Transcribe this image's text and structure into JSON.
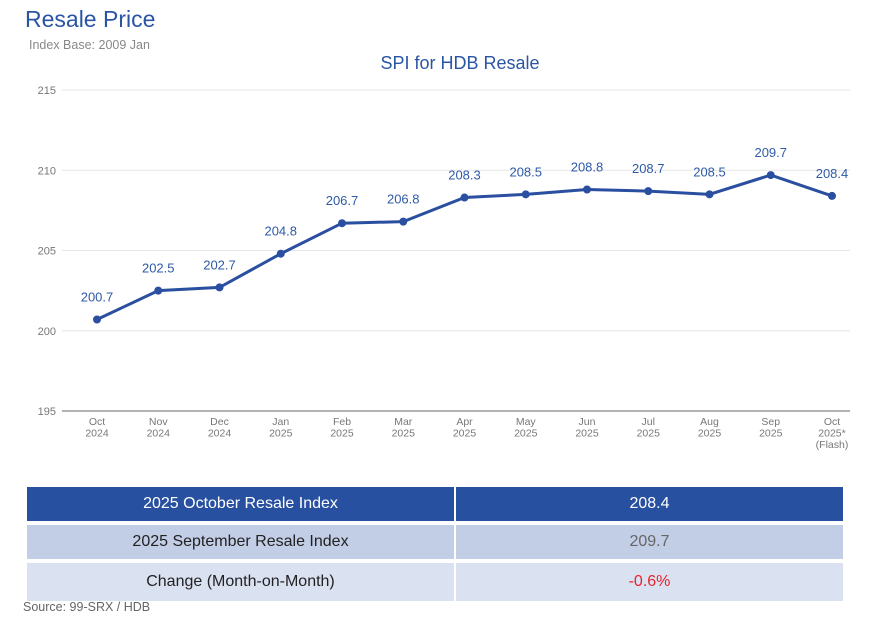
{
  "header": {
    "title": "Resale Price",
    "subtitle": "Index Base: 2009 Jan"
  },
  "chart_data": {
    "type": "line",
    "title": "SPI for HDB Resale",
    "categories": [
      [
        "Oct",
        "2024"
      ],
      [
        "Nov",
        "2024"
      ],
      [
        "Dec",
        "2024"
      ],
      [
        "Jan",
        "2025"
      ],
      [
        "Feb",
        "2025"
      ],
      [
        "Mar",
        "2025"
      ],
      [
        "Apr",
        "2025"
      ],
      [
        "May",
        "2025"
      ],
      [
        "Jun",
        "2025"
      ],
      [
        "Jul",
        "2025"
      ],
      [
        "Aug",
        "2025"
      ],
      [
        "Sep",
        "2025"
      ],
      [
        "Oct",
        "2025*",
        "(Flash)"
      ]
    ],
    "values": [
      200.7,
      202.5,
      202.7,
      204.8,
      206.7,
      206.8,
      208.3,
      208.5,
      208.8,
      208.7,
      208.5,
      209.7,
      208.4
    ],
    "ylim": [
      195,
      215
    ],
    "yticks": [
      195,
      200,
      205,
      210,
      215
    ],
    "grid": true,
    "line_color": "#2a4fa0",
    "label_color": "#2f5aa8"
  },
  "table": {
    "rows": [
      {
        "label": "2025 October Resale Index",
        "value": "208.4"
      },
      {
        "label": "2025 September Resale Index",
        "value": "209.7"
      },
      {
        "label": "Change (Month-on-Month)",
        "value": "-0.6%"
      }
    ]
  },
  "footer": {
    "source": "Source: 99-SRX / HDB"
  }
}
